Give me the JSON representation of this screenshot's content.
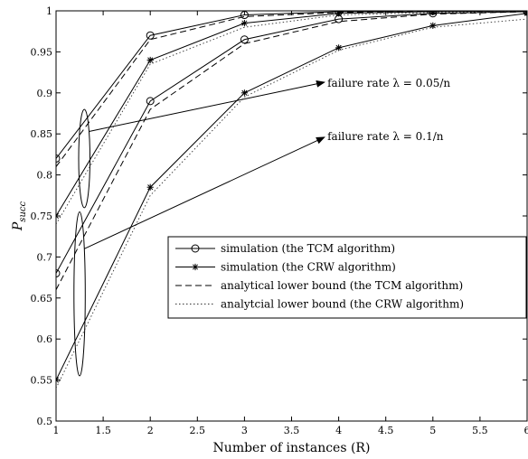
{
  "chart_data": {
    "type": "line",
    "xlabel": "Number of instances (R)",
    "ylabel": "P",
    "ylabel_sub": "succ",
    "xlim": [
      1,
      6
    ],
    "ylim": [
      0.5,
      1.0
    ],
    "x_ticks": [
      1,
      1.5,
      2,
      2.5,
      3,
      3.5,
      4,
      4.5,
      5,
      5.5,
      6
    ],
    "x_tick_labels": [
      "1",
      "1.5",
      "2",
      "2.5",
      "3",
      "3.5",
      "4",
      "4.5",
      "5",
      "5.5",
      "6"
    ],
    "y_ticks": [
      0.5,
      0.55,
      0.6,
      0.65,
      0.7,
      0.75,
      0.8,
      0.85,
      0.9,
      0.95,
      1.0
    ],
    "y_tick_labels": [
      "0.5",
      "0.55",
      "0.6",
      "0.65",
      "0.7",
      "0.75",
      "0.8",
      "0.85",
      "0.9",
      "0.95",
      "1"
    ],
    "grid": false,
    "legend_position": "lower-right",
    "x": [
      1,
      2,
      3,
      4,
      5,
      6
    ],
    "series": [
      {
        "name": "simulation (the TCM algorithm)",
        "style": "solid",
        "marker": "circle",
        "group": "lambda_0.05",
        "values": [
          0.82,
          0.97,
          0.995,
          0.999,
          1.0,
          1.0
        ]
      },
      {
        "name": "simulation (the CRW algorithm)",
        "style": "solid",
        "marker": "star",
        "group": "lambda_0.05",
        "values": [
          0.75,
          0.94,
          0.985,
          0.997,
          0.999,
          1.0
        ]
      },
      {
        "name": "analytical lower bound (the TCM algorithm)",
        "style": "dashed",
        "marker": "none",
        "group": "lambda_0.05",
        "values": [
          0.81,
          0.965,
          0.993,
          0.998,
          0.9995,
          1.0
        ]
      },
      {
        "name": "analytcial lower bound (the CRW algorithm)",
        "style": "dotted",
        "marker": "none",
        "group": "lambda_0.05",
        "values": [
          0.74,
          0.935,
          0.98,
          0.995,
          0.998,
          0.999
        ]
      },
      {
        "name": "simulation (the TCM algorithm)",
        "style": "solid",
        "marker": "circle",
        "group": "lambda_0.1",
        "values": [
          0.68,
          0.89,
          0.965,
          0.99,
          0.997,
          0.999
        ]
      },
      {
        "name": "simulation (the CRW algorithm)",
        "style": "solid",
        "marker": "star",
        "group": "lambda_0.1",
        "values": [
          0.55,
          0.785,
          0.9,
          0.955,
          0.982,
          0.997
        ]
      },
      {
        "name": "analytical lower bound (the TCM algorithm)",
        "style": "dashed",
        "marker": "none",
        "group": "lambda_0.1",
        "values": [
          0.66,
          0.88,
          0.96,
          0.987,
          0.996,
          0.999
        ]
      },
      {
        "name": "analytcial lower bound (the CRW algorithm)",
        "style": "dotted",
        "marker": "none",
        "group": "lambda_0.1",
        "values": [
          0.54,
          0.775,
          0.895,
          0.952,
          0.98,
          0.99
        ]
      }
    ],
    "annotations": [
      {
        "id": "lambda_0.05",
        "text": "failure rate λ = 0.05/n",
        "ellipse_center": [
          1.3,
          0.82
        ],
        "ellipse_halfwidth": 0.06,
        "ellipse_halfheight": 0.06,
        "arrow_from": [
          1.35,
          0.853
        ],
        "arrow_to": [
          3.85,
          0.913
        ],
        "text_at": [
          3.88,
          0.912
        ]
      },
      {
        "id": "lambda_0.1",
        "text": "failure rate λ = 0.1/n",
        "ellipse_center": [
          1.25,
          0.655
        ],
        "ellipse_halfwidth": 0.06,
        "ellipse_halfheight": 0.1,
        "arrow_from": [
          1.3,
          0.71
        ],
        "arrow_to": [
          3.85,
          0.846
        ],
        "text_at": [
          3.88,
          0.847
        ]
      }
    ]
  }
}
